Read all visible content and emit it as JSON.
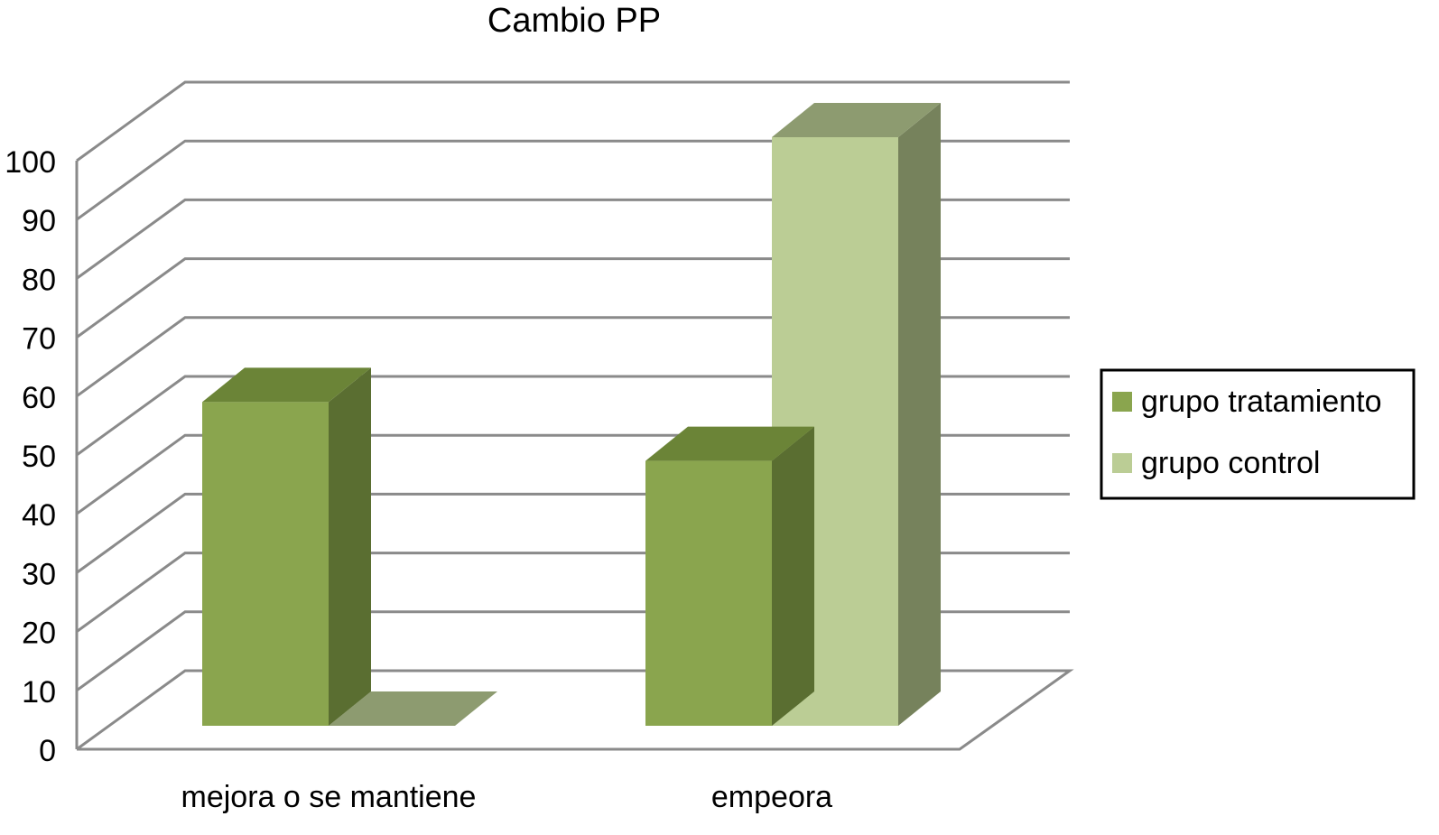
{
  "chart_data": {
    "type": "bar",
    "title": "Cambio PP",
    "xlabel": "",
    "ylabel": "",
    "categories": [
      "mejora o se mantiene",
      "empeora"
    ],
    "series": [
      {
        "name": "grupo tratamiento",
        "values": [
          55,
          45
        ],
        "color": "#8aa54e",
        "top_color": "#6b8437",
        "side_color": "#5a6e31"
      },
      {
        "name": "grupo control",
        "values": [
          0,
          100
        ],
        "color": "#bbcd95",
        "top_color": "#8d9b70",
        "side_color": "#76825c"
      }
    ],
    "ylim": [
      0,
      100
    ],
    "yticks": [
      0,
      10,
      20,
      30,
      40,
      50,
      60,
      70,
      80,
      90,
      100
    ],
    "grid": true,
    "legend_position": "right",
    "style": "3d-clustered-column"
  }
}
